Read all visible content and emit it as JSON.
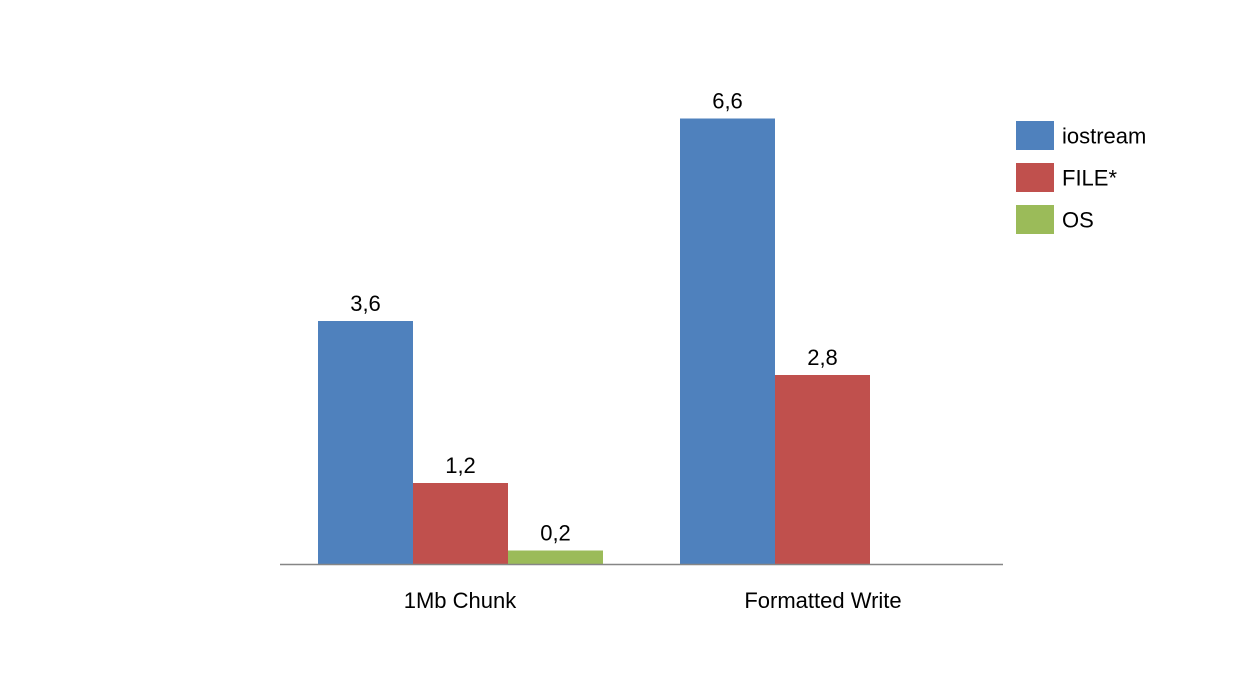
{
  "chart_data": {
    "type": "bar",
    "categories": [
      "1Mb Chunk",
      "Formatted Write"
    ],
    "series": [
      {
        "name": "iostream",
        "color": "#4F81BD",
        "values": [
          3.6,
          6.6
        ],
        "labels": [
          "3,6",
          "6,6"
        ]
      },
      {
        "name": "FILE*",
        "color": "#C0504D",
        "values": [
          1.2,
          2.8
        ],
        "labels": [
          "1,2",
          "2,8"
        ]
      },
      {
        "name": "OS",
        "color": "#9BBB59",
        "values": [
          0.2,
          null
        ],
        "labels": [
          "0,2",
          null
        ]
      }
    ],
    "title": "",
    "xlabel": "",
    "ylabel": "",
    "ylim": [
      0,
      7
    ],
    "grid": false,
    "legend": "right"
  }
}
